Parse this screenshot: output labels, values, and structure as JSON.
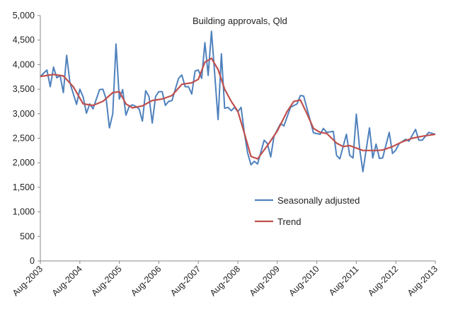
{
  "chart_data": {
    "type": "line",
    "title": "Building approvals, Qld",
    "xlabel": "",
    "ylabel": "",
    "ylim": [
      0,
      5000
    ],
    "xlim": [
      "Aug-2003",
      "Aug-2013"
    ],
    "y_ticks": [
      "0",
      "500",
      "1,000",
      "1,500",
      "2,000",
      "2,500",
      "3,000",
      "3,500",
      "4,000",
      "4,500",
      "5,000"
    ],
    "x_ticks": [
      "Aug-2003",
      "Aug-2004",
      "Aug-2005",
      "Aug-2006",
      "Aug-2007",
      "Aug-2008",
      "Aug-2009",
      "Aug-2010",
      "Aug-2011",
      "Aug-2012",
      "Aug-2013"
    ],
    "grid": false,
    "legend": "center-right",
    "series": [
      {
        "name": "Seasonally adjusted",
        "color": "#4f81bd",
        "points": [
          [
            "Aug-2003",
            3760
          ],
          [
            "Oct-2003",
            3890
          ],
          [
            "Nov-2003",
            3550
          ],
          [
            "Dec-2003",
            3950
          ],
          [
            "Jan-2004",
            3730
          ],
          [
            "Feb-2004",
            3780
          ],
          [
            "Mar-2004",
            3430
          ],
          [
            "Apr-2004",
            4190
          ],
          [
            "May-2004",
            3630
          ],
          [
            "Jul-2004",
            3190
          ],
          [
            "Aug-2004",
            3500
          ],
          [
            "Sep-2004",
            3340
          ],
          [
            "Oct-2004",
            3010
          ],
          [
            "Nov-2004",
            3200
          ],
          [
            "Dec-2004",
            3100
          ],
          [
            "Feb-2005",
            3490
          ],
          [
            "Mar-2005",
            3500
          ],
          [
            "Apr-2005",
            3300
          ],
          [
            "May-2005",
            2710
          ],
          [
            "Jun-2005",
            3000
          ],
          [
            "Jul-2005",
            4420
          ],
          [
            "Aug-2005",
            3300
          ],
          [
            "Sep-2005",
            3490
          ],
          [
            "Oct-2005",
            2970
          ],
          [
            "Nov-2005",
            3150
          ],
          [
            "Dec-2005",
            3180
          ],
          [
            "Jan-2006",
            3150
          ],
          [
            "Feb-2006",
            3100
          ],
          [
            "Mar-2006",
            2850
          ],
          [
            "Apr-2006",
            3470
          ],
          [
            "May-2006",
            3350
          ],
          [
            "Jun-2006",
            2810
          ],
          [
            "Jul-2006",
            3350
          ],
          [
            "Aug-2006",
            3450
          ],
          [
            "Sep-2006",
            3450
          ],
          [
            "Oct-2006",
            3170
          ],
          [
            "Nov-2006",
            3250
          ],
          [
            "Dec-2006",
            3270
          ],
          [
            "Jan-2007",
            3500
          ],
          [
            "Feb-2007",
            3720
          ],
          [
            "Mar-2007",
            3790
          ],
          [
            "Apr-2007",
            3550
          ],
          [
            "May-2007",
            3550
          ],
          [
            "Jun-2007",
            3400
          ],
          [
            "Jul-2007",
            3870
          ],
          [
            "Aug-2007",
            3890
          ],
          [
            "Sep-2007",
            3720
          ],
          [
            "Oct-2007",
            4450
          ],
          [
            "Nov-2007",
            3780
          ],
          [
            "Dec-2007",
            4680
          ],
          [
            "Jan-2008",
            3800
          ],
          [
            "Feb-2008",
            2880
          ],
          [
            "Mar-2008",
            4220
          ],
          [
            "Apr-2008",
            3110
          ],
          [
            "May-2008",
            3130
          ],
          [
            "Jun-2008",
            3060
          ],
          [
            "Jul-2008",
            3130
          ],
          [
            "Aug-2008",
            3040
          ],
          [
            "Sep-2008",
            3130
          ],
          [
            "Oct-2008",
            2600
          ],
          [
            "Nov-2008",
            2200
          ],
          [
            "Dec-2008",
            1960
          ],
          [
            "Jan-2009",
            2030
          ],
          [
            "Feb-2009",
            1975
          ],
          [
            "Apr-2009",
            2460
          ],
          [
            "May-2009",
            2390
          ],
          [
            "Jun-2009",
            2120
          ],
          [
            "Jul-2009",
            2540
          ],
          [
            "Sep-2009",
            2800
          ],
          [
            "Oct-2009",
            2750
          ],
          [
            "Dec-2009",
            3130
          ],
          [
            "Feb-2010",
            3200
          ],
          [
            "Mar-2010",
            3370
          ],
          [
            "Apr-2010",
            3360
          ],
          [
            "Jul-2010",
            2610
          ],
          [
            "Sep-2010",
            2580
          ],
          [
            "Oct-2010",
            2700
          ],
          [
            "Nov-2010",
            2620
          ],
          [
            "Jan-2011",
            2640
          ],
          [
            "Feb-2011",
            2150
          ],
          [
            "Mar-2011",
            2080
          ],
          [
            "May-2011",
            2580
          ],
          [
            "Jun-2011",
            2150
          ],
          [
            "Jul-2011",
            2100
          ],
          [
            "Aug-2011",
            2990
          ],
          [
            "Sep-2011",
            2290
          ],
          [
            "Oct-2011",
            1820
          ],
          [
            "Dec-2011",
            2710
          ],
          [
            "Jan-2012",
            2100
          ],
          [
            "Feb-2012",
            2380
          ],
          [
            "Mar-2012",
            2090
          ],
          [
            "Apr-2012",
            2100
          ],
          [
            "Jun-2012",
            2620
          ],
          [
            "Jul-2012",
            2190
          ],
          [
            "Aug-2012",
            2260
          ],
          [
            "Sep-2012",
            2390
          ],
          [
            "Nov-2012",
            2480
          ],
          [
            "Dec-2012",
            2440
          ],
          [
            "Feb-2013",
            2680
          ],
          [
            "Mar-2013",
            2460
          ],
          [
            "Apr-2013",
            2460
          ],
          [
            "Jun-2013",
            2620
          ],
          [
            "Aug-2013",
            2580
          ]
        ]
      },
      {
        "name": "Trend",
        "color": "#c0504d",
        "points": [
          [
            "Aug-2003",
            3760
          ],
          [
            "Dec-2003",
            3800
          ],
          [
            "Mar-2004",
            3770
          ],
          [
            "Jun-2004",
            3550
          ],
          [
            "Sep-2004",
            3200
          ],
          [
            "Dec-2004",
            3170
          ],
          [
            "Mar-2005",
            3250
          ],
          [
            "Jun-2005",
            3430
          ],
          [
            "Aug-2005",
            3450
          ],
          [
            "Oct-2005",
            3200
          ],
          [
            "Dec-2005",
            3120
          ],
          [
            "Mar-2006",
            3160
          ],
          [
            "Jun-2006",
            3270
          ],
          [
            "Sep-2006",
            3300
          ],
          [
            "Dec-2006",
            3370
          ],
          [
            "Mar-2007",
            3600
          ],
          [
            "Jun-2007",
            3630
          ],
          [
            "Aug-2007",
            3700
          ],
          [
            "Oct-2007",
            4050
          ],
          [
            "Dec-2007",
            4130
          ],
          [
            "Feb-2008",
            3900
          ],
          [
            "Apr-2008",
            3500
          ],
          [
            "Jun-2008",
            3250
          ],
          [
            "Aug-2008",
            3050
          ],
          [
            "Oct-2008",
            2600
          ],
          [
            "Dec-2008",
            2130
          ],
          [
            "Feb-2009",
            2080
          ],
          [
            "May-2009",
            2350
          ],
          [
            "Aug-2009",
            2650
          ],
          [
            "Nov-2009",
            3050
          ],
          [
            "Jan-2010",
            3250
          ],
          [
            "Mar-2010",
            3280
          ],
          [
            "May-2010",
            3000
          ],
          [
            "Jul-2010",
            2700
          ],
          [
            "Sep-2010",
            2620
          ],
          [
            "Nov-2010",
            2600
          ],
          [
            "Feb-2011",
            2400
          ],
          [
            "Apr-2011",
            2330
          ],
          [
            "Jun-2011",
            2350
          ],
          [
            "Aug-2011",
            2300
          ],
          [
            "Oct-2011",
            2250
          ],
          [
            "Feb-2012",
            2250
          ],
          [
            "Apr-2012",
            2260
          ],
          [
            "Jul-2012",
            2330
          ],
          [
            "Oct-2012",
            2430
          ],
          [
            "Jan-2013",
            2500
          ],
          [
            "Apr-2013",
            2540
          ],
          [
            "Aug-2013",
            2580
          ]
        ]
      }
    ]
  }
}
